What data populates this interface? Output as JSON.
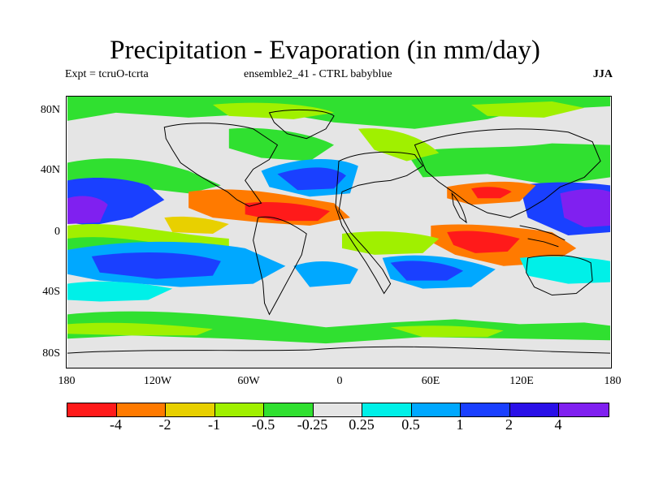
{
  "title": "Precipitation - Evaporation (in mm/day)",
  "subtitle_left": "Expt = tcruO-tcrta",
  "subtitle_center": "ensemble2_41 - CTRL babyblue",
  "season": "JJA",
  "lat_labels": [
    "80N",
    "40N",
    "0",
    "40S",
    "80S"
  ],
  "lon_labels": [
    "180",
    "120W",
    "60W",
    "0",
    "60E",
    "120E",
    "180"
  ],
  "colorbar": {
    "colors": [
      "#ff1a1a",
      "#ff7a00",
      "#e8d000",
      "#a0f000",
      "#30e030",
      "#e5e5e5",
      "#00f0e8",
      "#00a8ff",
      "#1a40ff",
      "#2a10e8",
      "#8020f0"
    ],
    "labels": [
      "-4",
      "-2",
      "-1",
      "-0.5",
      "-0.25",
      "0.25",
      "0.5",
      "1",
      "2",
      "4"
    ]
  },
  "map_colors": {
    "bg": "#e5e5e5",
    "green": "#30e030",
    "lime": "#a0f000",
    "yellow": "#e8d000",
    "orange": "#ff7a00",
    "red": "#ff1a1a",
    "cyan": "#00f0e8",
    "sky": "#00a8ff",
    "blue": "#1a40ff",
    "indigo": "#2a10e8",
    "violet": "#8020f0",
    "coast": "#000000"
  }
}
